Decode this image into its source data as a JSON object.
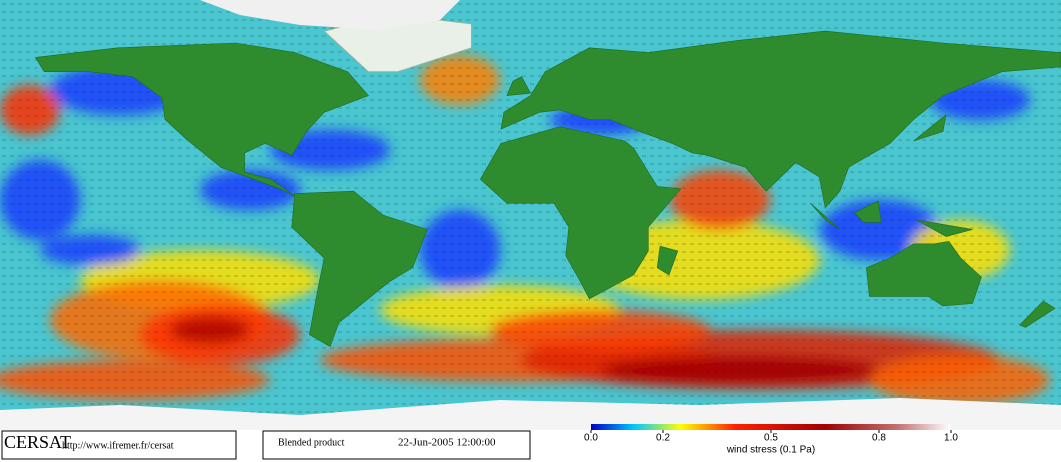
{
  "footer": {
    "logo": "CERSAT",
    "url": "http://www.ifremer.fr/cersat",
    "product": "Blended product",
    "date": "22-Jun-2005 12:00:00"
  },
  "colorbar": {
    "title": "wind stress (0.1 Pa)",
    "lim": [
      0,
      1
    ],
    "ticks": [
      {
        "value": 0,
        "label": "0.0"
      },
      {
        "value": 0.2,
        "label": "0.2"
      },
      {
        "value": 0.5,
        "label": "0.5"
      },
      {
        "value": 0.8,
        "label": "0.8"
      },
      {
        "value": 1,
        "label": "1.0"
      }
    ]
  }
}
